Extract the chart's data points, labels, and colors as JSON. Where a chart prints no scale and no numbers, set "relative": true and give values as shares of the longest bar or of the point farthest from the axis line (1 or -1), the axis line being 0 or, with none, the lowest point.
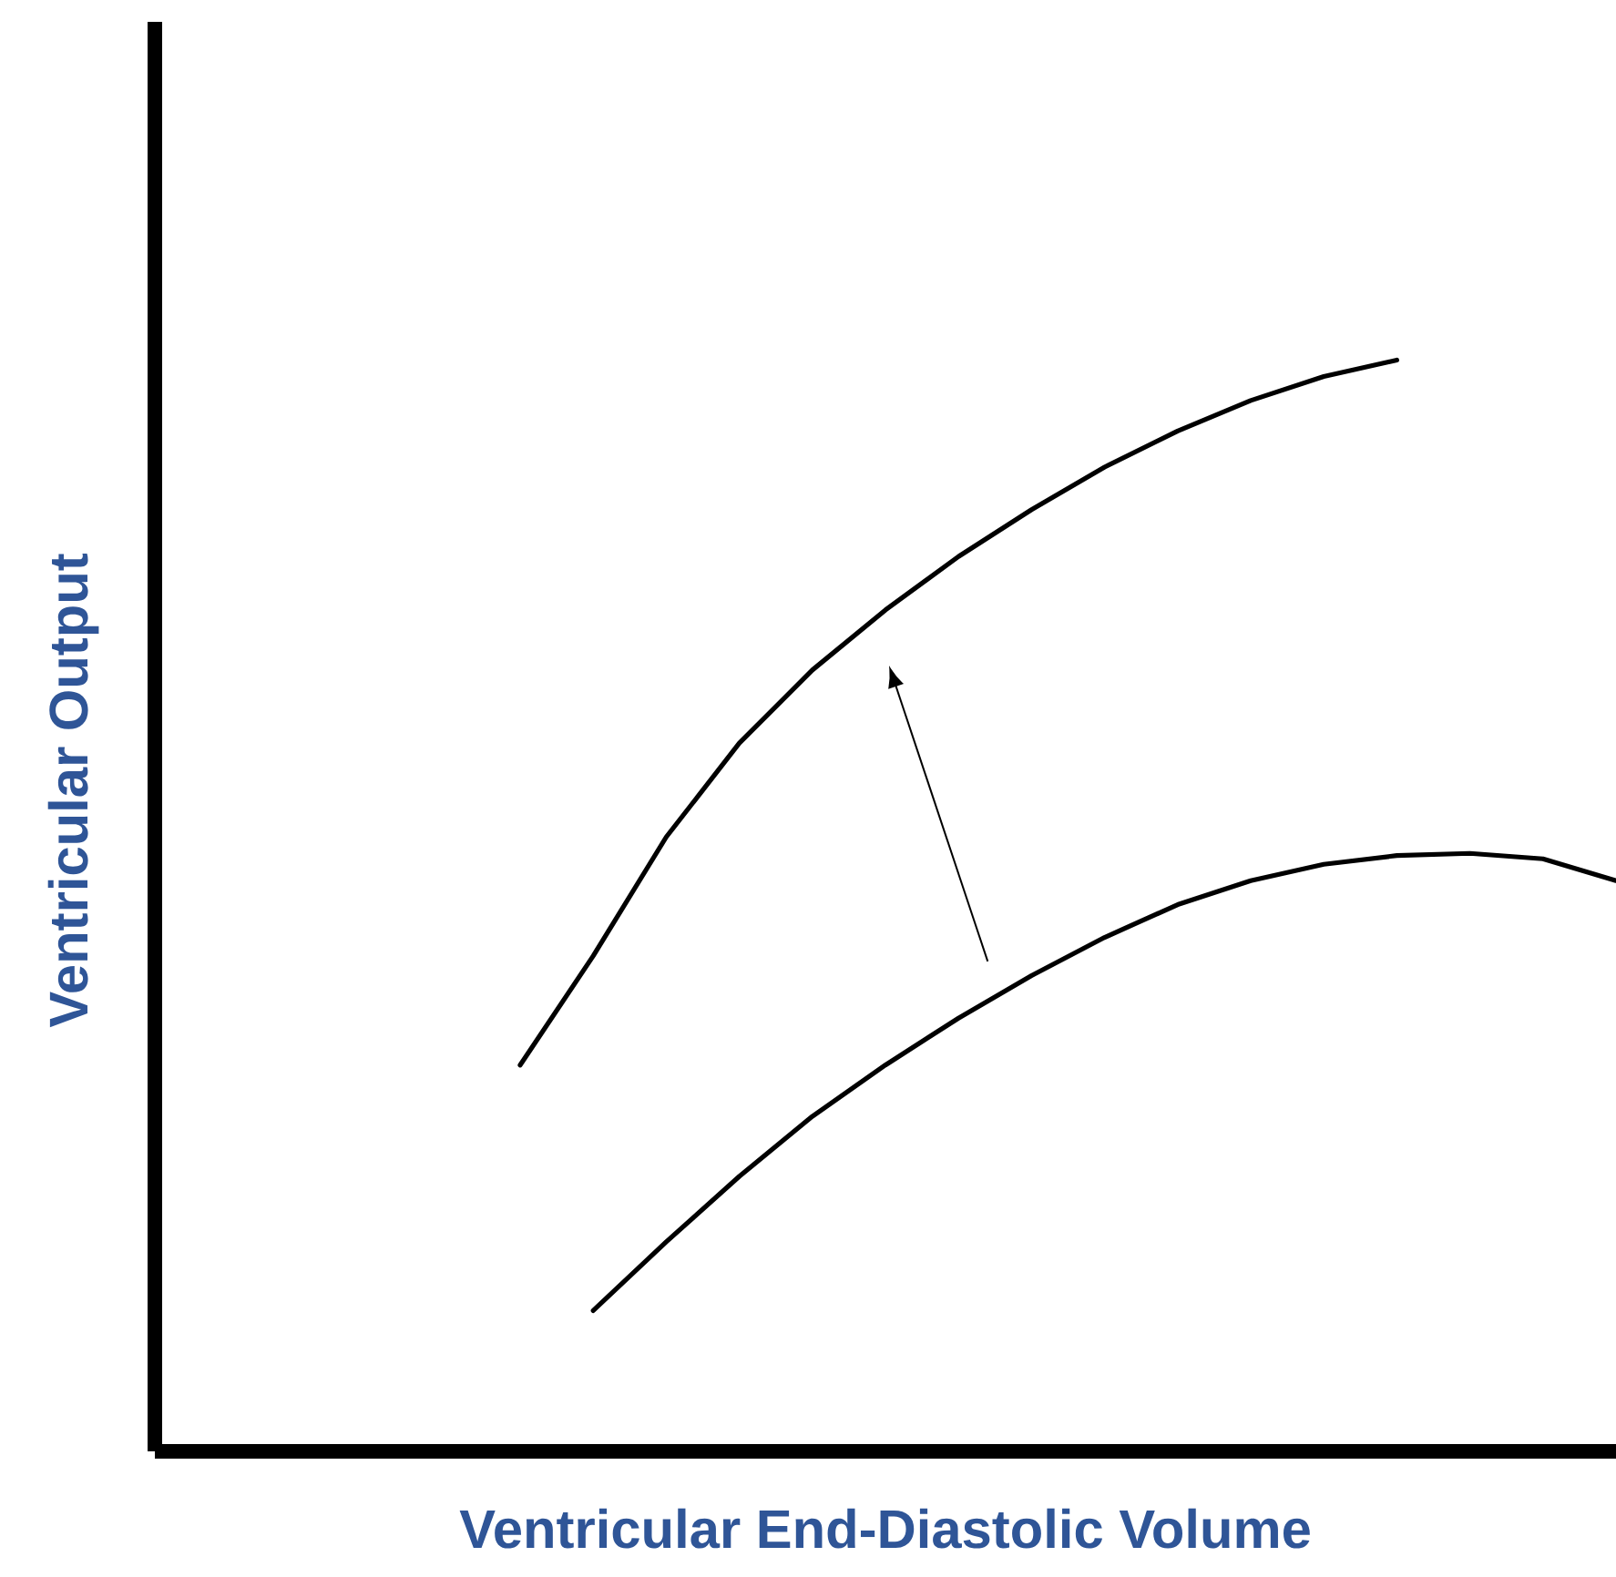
{
  "chart_data": {
    "type": "line",
    "xlabel": "Ventricular End-Diastolic Volume",
    "ylabel": "Ventricular Output",
    "relative": true,
    "marker": "none",
    "line_style": "solid",
    "categories": [
      null,
      null,
      null,
      null,
      null,
      null,
      null,
      null,
      null,
      null,
      null,
      null,
      null,
      null,
      null,
      null,
      null,
      null,
      null,
      null,
      null
    ],
    "series": [
      {
        "color": "#000000",
        "values": [
          null,
          null,
          null,
          null,
          null,
          0.354,
          0.454,
          0.563,
          0.649,
          0.716,
          0.771,
          0.82,
          0.863,
          0.902,
          0.935,
          0.963,
          0.985,
          1.0,
          null,
          null,
          null
        ]
      },
      {
        "color": "#000000",
        "values": [
          null,
          null,
          null,
          null,
          null,
          null,
          0.129,
          0.192,
          0.252,
          0.307,
          0.354,
          0.397,
          0.436,
          0.471,
          0.501,
          0.523,
          0.538,
          0.546,
          0.548,
          0.543,
          0.523
        ]
      }
    ]
  }
}
